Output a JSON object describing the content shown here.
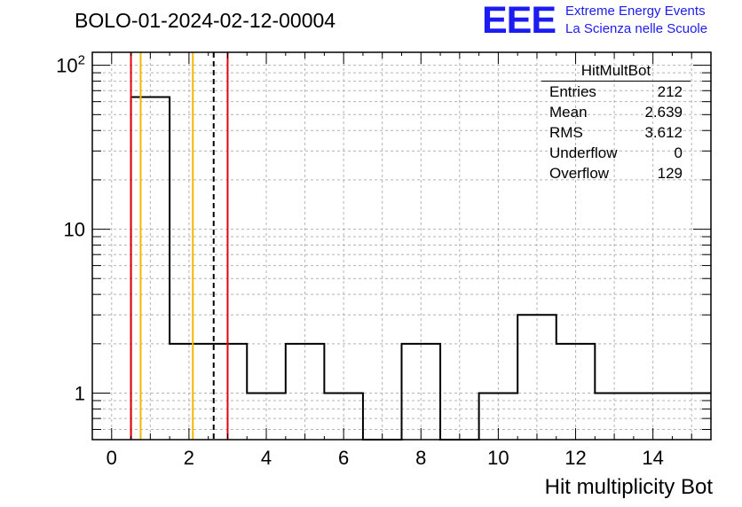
{
  "title": "BOLO-01-2024-02-12-00004",
  "logo": {
    "mark": "EEE",
    "line1": "Extreme Energy Events",
    "line2": "La Scienza nelle Scuole",
    "color": "#1c1cf0"
  },
  "stats_box": {
    "title": "HitMultBot",
    "rows": [
      {
        "label": "Entries",
        "value": "212"
      },
      {
        "label": "Mean",
        "value": "2.639"
      },
      {
        "label": "RMS",
        "value": "3.612"
      },
      {
        "label": "Underflow",
        "value": "0"
      },
      {
        "label": "Overflow",
        "value": "129"
      }
    ]
  },
  "chart_data": {
    "type": "bar",
    "style": "step-histogram",
    "xlabel": "Hit multiplicity Bot",
    "ylabel": "",
    "xlim": [
      -0.5,
      15.5
    ],
    "ylim": [
      0.52,
      120
    ],
    "yscale": "log",
    "grid": true,
    "bin_edges": [
      -0.5,
      0.5,
      1.5,
      2.5,
      3.5,
      4.5,
      5.5,
      6.5,
      7.5,
      8.5,
      9.5,
      10.5,
      11.5,
      12.5,
      13.5,
      14.5,
      15.5
    ],
    "values": [
      0,
      64,
      2,
      2,
      1,
      2,
      1,
      0,
      2,
      0,
      1,
      3,
      2,
      1,
      1,
      1
    ],
    "x_ticks": [
      "0",
      "2",
      "4",
      "6",
      "8",
      "10",
      "12",
      "14"
    ],
    "y_ticks": [
      "1",
      "10",
      "10^2"
    ],
    "vertical_lines": [
      {
        "x": 0.5,
        "color": "#e8000b",
        "style": "solid"
      },
      {
        "x": 0.75,
        "color": "#f5b800",
        "style": "solid"
      },
      {
        "x": 2.1,
        "color": "#f5b800",
        "style": "solid"
      },
      {
        "x": 2.639,
        "color": "#000000",
        "style": "dashed"
      },
      {
        "x": 3.0,
        "color": "#e8000b",
        "style": "solid"
      }
    ]
  }
}
